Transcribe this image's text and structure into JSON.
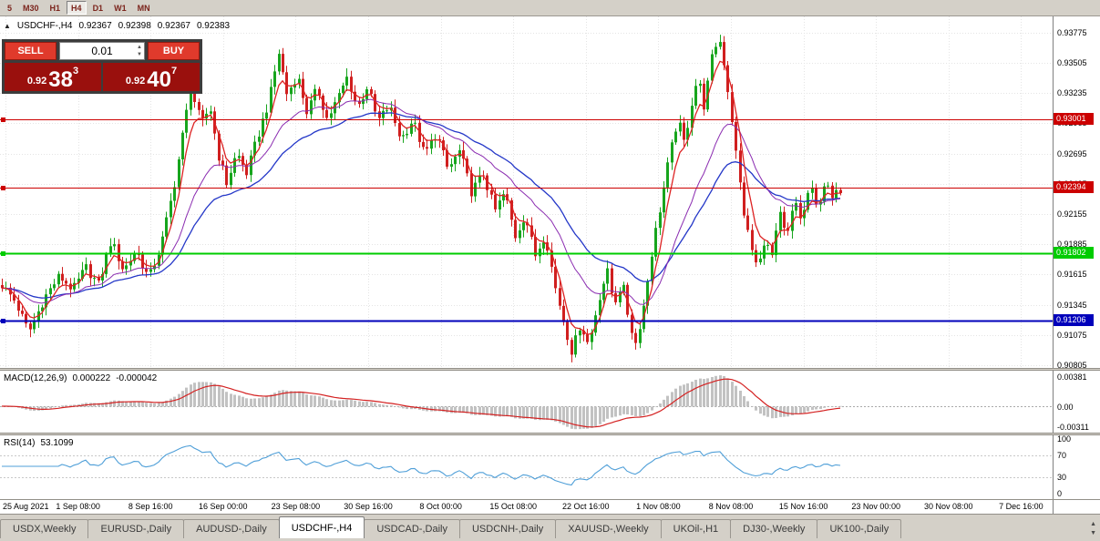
{
  "toolbar": {
    "timeframes": [
      {
        "label": "5",
        "selected": false
      },
      {
        "label": "M30",
        "selected": false
      },
      {
        "label": "H1",
        "selected": false
      },
      {
        "label": "H4",
        "selected": true
      },
      {
        "label": "D1",
        "selected": false
      },
      {
        "label": "W1",
        "selected": false
      },
      {
        "label": "MN",
        "selected": false
      }
    ]
  },
  "chart": {
    "title": "USDCHF-,H4",
    "open": "0.92367",
    "high": "0.92398",
    "low": "0.92367",
    "close": "0.92383"
  },
  "trade_panel": {
    "sell_label": "SELL",
    "buy_label": "BUY",
    "lot_value": "0.01",
    "sell_price_base": "0.92",
    "sell_price_big": "38",
    "sell_price_sup": "3",
    "buy_price_base": "0.92",
    "buy_price_big": "40",
    "buy_price_sup": "7"
  },
  "price_axis": {
    "min": 0.9078,
    "max": 0.9392,
    "labels": [
      "0.93775",
      "0.93505",
      "0.93235",
      "0.92965",
      "0.92695",
      "0.92425",
      "0.92155",
      "0.91885",
      "0.91615",
      "0.91345",
      "0.91075",
      "0.90805"
    ]
  },
  "hlines": [
    {
      "label": "0.93001",
      "value": 0.93001,
      "color": "#cc0000",
      "width": 1,
      "text_color": "#ffffff"
    },
    {
      "label": "0.92394",
      "value": 0.92394,
      "color": "#cc0000",
      "width": 1,
      "text_color": "#ffffff"
    },
    {
      "label": "0.91802",
      "value": 0.91802,
      "color": "#00cc00",
      "width": 2,
      "text_color": "#ffffff"
    },
    {
      "label": "0.91206",
      "value": 0.91206,
      "color": "#0000bb",
      "width": 2,
      "text_color": "#ffffff"
    }
  ],
  "macd_panel": {
    "label": "MACD(12,26,9)",
    "value_main": "0.000222",
    "value_signal": "-0.000042",
    "axis_labels": [
      "0.00381",
      "0.00",
      "-0.00311"
    ]
  },
  "rsi_panel": {
    "label": "RSI(14)",
    "value": "53.1099",
    "period": 14,
    "levels": [
      70,
      30
    ],
    "axis_labels": [
      "100",
      "70",
      "30",
      "0"
    ]
  },
  "time_axis": {
    "labels": [
      "25 Aug 2021",
      "1 Sep 08:00",
      "8 Sep 16:00",
      "16 Sep 00:00",
      "23 Sep 08:00",
      "30 Sep 16:00",
      "8 Oct 00:00",
      "15 Oct 08:00",
      "22 Oct 16:00",
      "1 Nov 08:00",
      "8 Nov 08:00",
      "15 Nov 16:00",
      "23 Nov 00:00",
      "30 Nov 08:00",
      "7 Dec 16:00"
    ]
  },
  "tabs": [
    {
      "label": "USDX,Weekly",
      "selected": false
    },
    {
      "label": "EURUSD-,Daily",
      "selected": false
    },
    {
      "label": "AUDUSD-,Daily",
      "selected": false
    },
    {
      "label": "USDCHF-,H4",
      "selected": true
    },
    {
      "label": "USDCAD-,Daily",
      "selected": false
    },
    {
      "label": "USDCNH-,Daily",
      "selected": false
    },
    {
      "label": "XAUUSD-,Weekly",
      "selected": false
    },
    {
      "label": "UKOil-,H1",
      "selected": false
    },
    {
      "label": "DJ30-,Weekly",
      "selected": false
    },
    {
      "label": "UK100-,Daily",
      "selected": false
    }
  ],
  "chart_data": {
    "type": "candlestick",
    "symbol": "USDCHF-",
    "timeframe": "H4",
    "candles_count": 210,
    "data_width_ratio": 0.8,
    "ma_periods": {
      "fast": 5,
      "mid": 20,
      "slow": 36
    },
    "macd_params": [
      12,
      26,
      9
    ],
    "colors": {
      "up": "#17a51d",
      "down": "#d01f1f",
      "ma_fast": "#dd2222",
      "ma_mid": "#8a2bb0",
      "ma_slow": "#2437c8",
      "macd_hist": "#c2c2c2",
      "macd_signal": "#d42222",
      "rsi_line": "#4f9fd8",
      "grid": "#e4e4e4"
    },
    "price_anchors": [
      [
        0.0,
        0.9152
      ],
      [
        0.015,
        0.9138
      ],
      [
        0.032,
        0.911
      ],
      [
        0.05,
        0.914
      ],
      [
        0.068,
        0.916
      ],
      [
        0.085,
        0.9148
      ],
      [
        0.1,
        0.9168
      ],
      [
        0.115,
        0.9152
      ],
      [
        0.13,
        0.9192
      ],
      [
        0.145,
        0.9165
      ],
      [
        0.16,
        0.9183
      ],
      [
        0.175,
        0.9158
      ],
      [
        0.19,
        0.9188
      ],
      [
        0.205,
        0.924
      ],
      [
        0.225,
        0.9328
      ],
      [
        0.238,
        0.9295
      ],
      [
        0.248,
        0.9312
      ],
      [
        0.258,
        0.9268
      ],
      [
        0.268,
        0.9243
      ],
      [
        0.28,
        0.927
      ],
      [
        0.292,
        0.9252
      ],
      [
        0.305,
        0.9285
      ],
      [
        0.318,
        0.9315
      ],
      [
        0.33,
        0.936
      ],
      [
        0.34,
        0.9322
      ],
      [
        0.352,
        0.934
      ],
      [
        0.364,
        0.9306
      ],
      [
        0.376,
        0.9328
      ],
      [
        0.388,
        0.93
      ],
      [
        0.4,
        0.9318
      ],
      [
        0.412,
        0.9338
      ],
      [
        0.424,
        0.931
      ],
      [
        0.436,
        0.933
      ],
      [
        0.448,
        0.9298
      ],
      [
        0.462,
        0.9312
      ],
      [
        0.476,
        0.9282
      ],
      [
        0.49,
        0.93
      ],
      [
        0.504,
        0.9268
      ],
      [
        0.518,
        0.9288
      ],
      [
        0.532,
        0.9255
      ],
      [
        0.546,
        0.9272
      ],
      [
        0.56,
        0.9235
      ],
      [
        0.574,
        0.9252
      ],
      [
        0.588,
        0.9218
      ],
      [
        0.6,
        0.9235
      ],
      [
        0.612,
        0.9195
      ],
      [
        0.624,
        0.9215
      ],
      [
        0.636,
        0.9178
      ],
      [
        0.648,
        0.9198
      ],
      [
        0.66,
        0.915
      ],
      [
        0.67,
        0.912
      ],
      [
        0.68,
        0.9092
      ],
      [
        0.69,
        0.9118
      ],
      [
        0.7,
        0.9098
      ],
      [
        0.712,
        0.914
      ],
      [
        0.722,
        0.9165
      ],
      [
        0.73,
        0.9135
      ],
      [
        0.74,
        0.9155
      ],
      [
        0.748,
        0.912
      ],
      [
        0.756,
        0.91
      ],
      [
        0.766,
        0.9135
      ],
      [
        0.776,
        0.9185
      ],
      [
        0.786,
        0.9225
      ],
      [
        0.796,
        0.9265
      ],
      [
        0.806,
        0.93
      ],
      [
        0.814,
        0.9278
      ],
      [
        0.822,
        0.9312
      ],
      [
        0.83,
        0.9338
      ],
      [
        0.838,
        0.931
      ],
      [
        0.846,
        0.9352
      ],
      [
        0.855,
        0.9375
      ],
      [
        0.862,
        0.9348
      ],
      [
        0.87,
        0.9305
      ],
      [
        0.878,
        0.9255
      ],
      [
        0.886,
        0.9212
      ],
      [
        0.894,
        0.9185
      ],
      [
        0.902,
        0.9165
      ],
      [
        0.91,
        0.9195
      ],
      [
        0.918,
        0.9175
      ],
      [
        0.928,
        0.9215
      ],
      [
        0.936,
        0.9192
      ],
      [
        0.946,
        0.9228
      ],
      [
        0.954,
        0.9208
      ],
      [
        0.964,
        0.9242
      ],
      [
        0.972,
        0.922
      ],
      [
        0.982,
        0.9245
      ],
      [
        0.99,
        0.9228
      ],
      [
        1.0,
        0.9238
      ]
    ]
  }
}
